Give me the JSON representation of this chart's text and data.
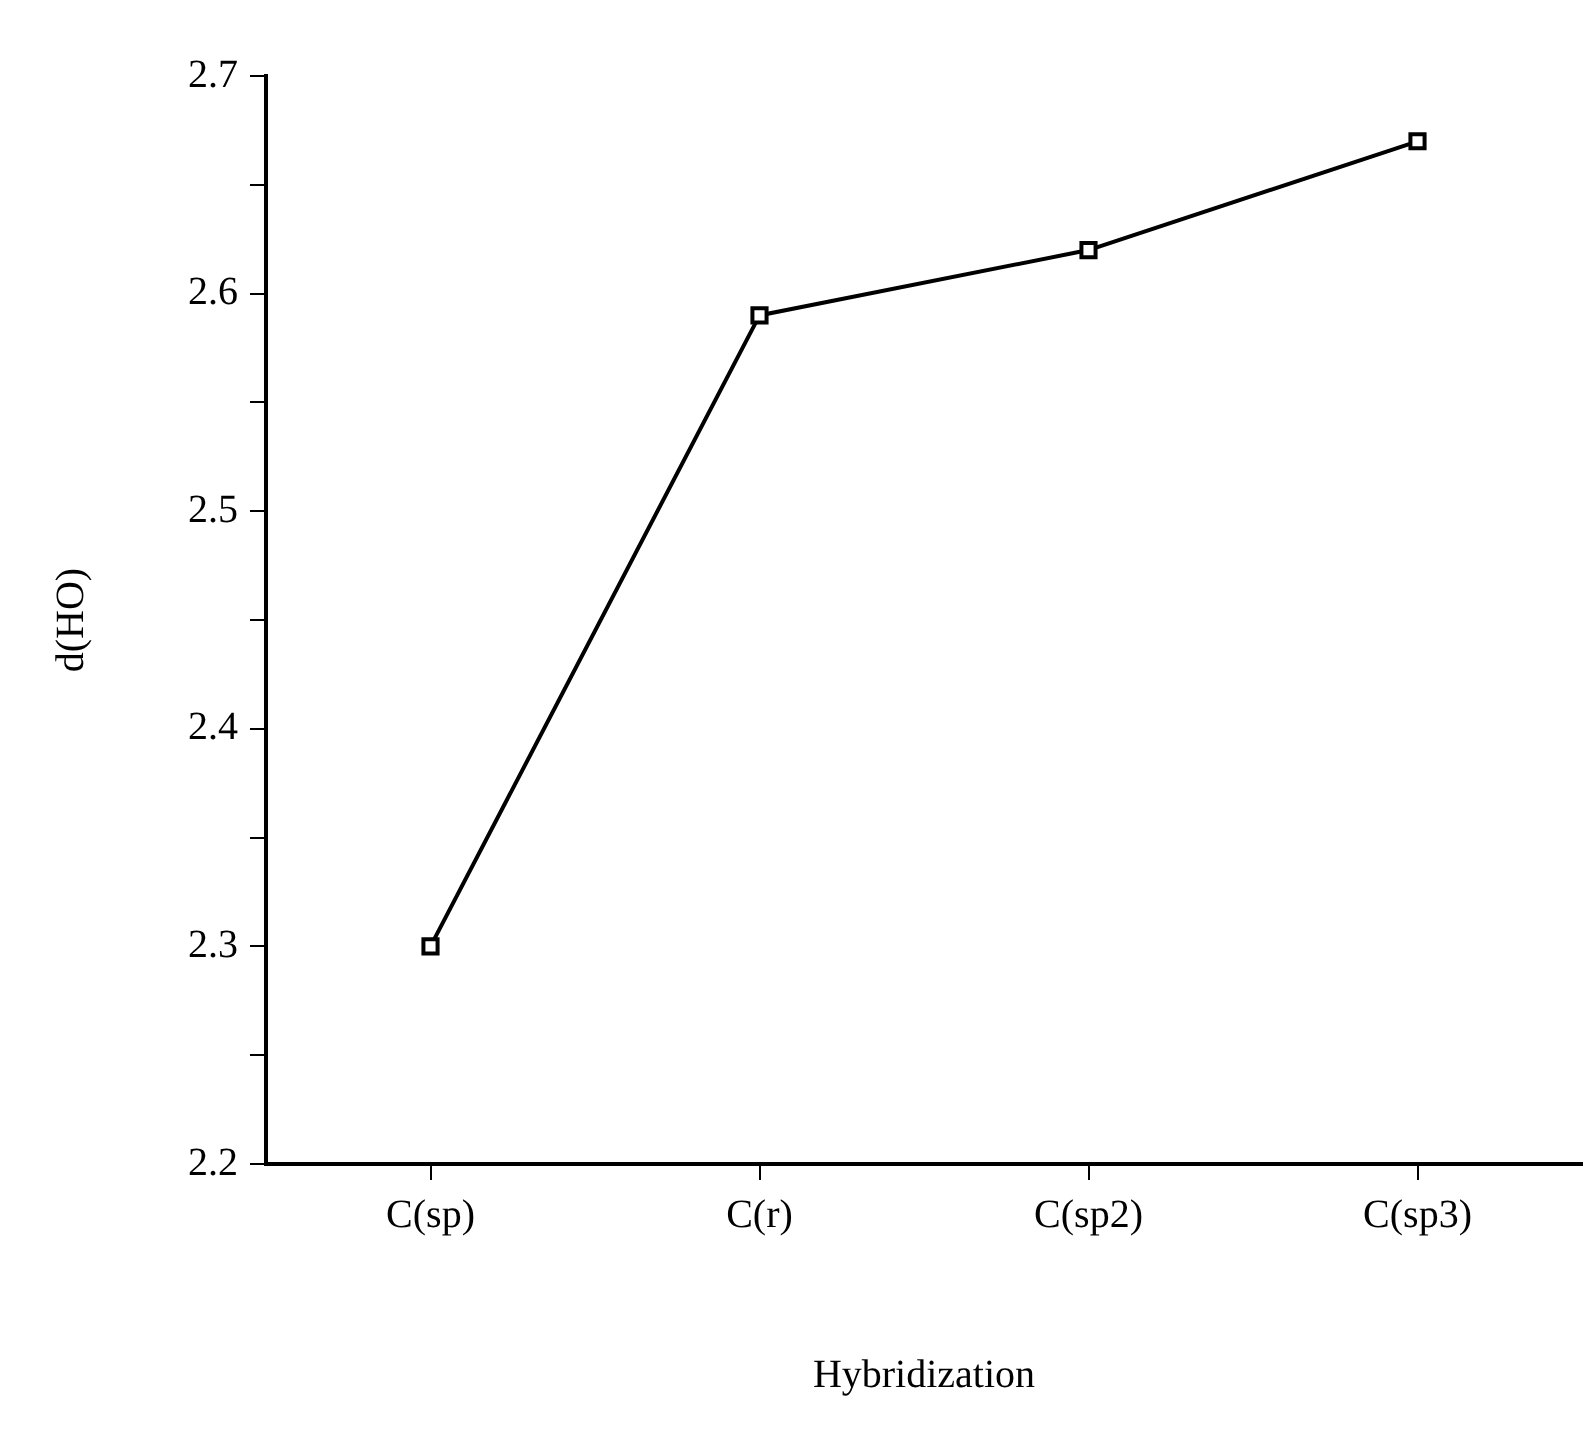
{
  "chart_data": {
    "type": "line",
    "xlabel": "Hybridization",
    "ylabel": "d(HO)",
    "categories": [
      "C(sp)",
      "C(r)",
      "C(sp2)",
      "C(sp3)"
    ],
    "series": [
      {
        "color": "#000000",
        "values": [
          2.3,
          2.59,
          2.62,
          2.67
        ]
      }
    ],
    "ylim": [
      2.2,
      2.7
    ],
    "yticks": [
      2.2,
      {
        "value": 2.25,
        "label": null
      },
      2.3,
      {
        "value": 2.35,
        "label": null
      },
      2.4,
      {
        "value": 2.45,
        "label": null
      },
      2.5,
      {
        "value": 2.55,
        "label": null
      },
      2.6,
      {
        "value": 2.65,
        "label": null
      },
      2.7
    ],
    "grid": false,
    "legend": false,
    "marker": "square",
    "line_style": "solid"
  }
}
